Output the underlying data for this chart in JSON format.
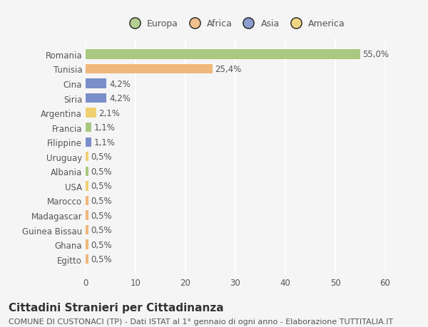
{
  "categories": [
    "Romania",
    "Tunisia",
    "Cina",
    "Siria",
    "Argentina",
    "Francia",
    "Filippine",
    "Uruguay",
    "Albania",
    "USA",
    "Marocco",
    "Madagascar",
    "Guinea Bissau",
    "Ghana",
    "Egitto"
  ],
  "values": [
    55.0,
    25.4,
    4.2,
    4.2,
    2.1,
    1.1,
    1.1,
    0.5,
    0.5,
    0.5,
    0.5,
    0.5,
    0.5,
    0.5,
    0.5
  ],
  "labels": [
    "55,0%",
    "25,4%",
    "4,2%",
    "4,2%",
    "2,1%",
    "1,1%",
    "1,1%",
    "0,5%",
    "0,5%",
    "0,5%",
    "0,5%",
    "0,5%",
    "0,5%",
    "0,5%",
    "0,5%"
  ],
  "bar_colors": [
    "#a8c97f",
    "#f0b87a",
    "#7a8fc9",
    "#7a8fc9",
    "#f0d070",
    "#a8c97f",
    "#7a8fc9",
    "#f0d070",
    "#a8c97f",
    "#f0d070",
    "#f0b87a",
    "#f0b87a",
    "#f0b87a",
    "#f0b87a",
    "#f0b87a"
  ],
  "continent": [
    "Europa",
    "Africa",
    "Asia",
    "Asia",
    "America",
    "Europa",
    "Asia",
    "America",
    "Europa",
    "America",
    "Africa",
    "Africa",
    "Africa",
    "Africa",
    "Africa"
  ],
  "legend_labels": [
    "Europa",
    "Africa",
    "Asia",
    "America"
  ],
  "legend_colors": [
    "#a8c97f",
    "#f0b87a",
    "#7a8fc9",
    "#f0d070"
  ],
  "title": "Cittadini Stranieri per Cittadinanza",
  "subtitle": "COMUNE DI CUSTONACI (TP) - Dati ISTAT al 1° gennaio di ogni anno - Elaborazione TUTTITALIA.IT",
  "xlim": [
    0,
    60
  ],
  "xticks": [
    0,
    10,
    20,
    30,
    40,
    50,
    60
  ],
  "background_color": "#f5f5f5",
  "grid_color": "#ffffff",
  "title_fontsize": 11,
  "subtitle_fontsize": 8,
  "label_fontsize": 8.5,
  "tick_fontsize": 8.5,
  "legend_fontsize": 9
}
